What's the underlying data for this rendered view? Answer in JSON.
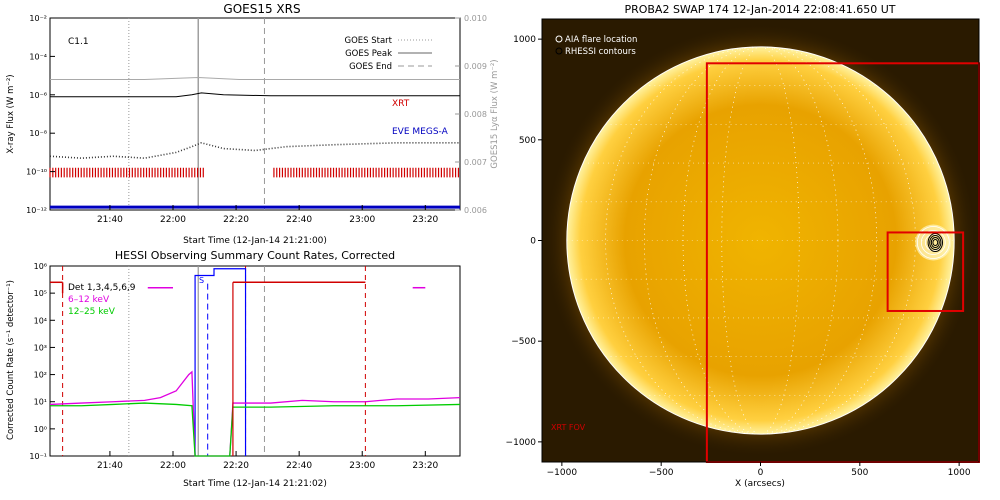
{
  "colors": {
    "goes_gray": "#a9a9a9",
    "xrt_red": "#d00000",
    "eve_blue": "#0000c0",
    "hessi_magenta": "#e000e0",
    "hessi_green": "#00cc00",
    "det_red": "#d00000",
    "attenuator_blue": "#0000ff",
    "sun_orange": "#e8a200",
    "sun_bright": "#fff2a0",
    "swap_bg": "#2a1a00"
  },
  "goes_panel": {
    "title": "GOES15 XRS",
    "class_label": "C1.1",
    "left_axis_label": "X-ray Flux (W m⁻²)",
    "right_axis_label": "GOES15 Lyα Flux (W m⁻²)",
    "x_axis_label": "Start Time (12-Jan-14 21:21:00)",
    "legend": [
      "GOES Start",
      "GOES Peak",
      "GOES End"
    ],
    "series_labels": {
      "xrt": "XRT",
      "eve": "EVE MEGS-A"
    }
  },
  "hessi_panel": {
    "title": "HESSI Observing Summary Count Rates, Corrected",
    "y_axis_label": "Corrected Count Rate (s⁻¹ detector⁻¹)",
    "x_axis_label": "Start Time (12-Jan-14 21:21:02)",
    "legend": [
      "Det 1,3,4,5,6,9",
      "6–12 keV",
      "12–25 keV"
    ],
    "attenuator_label": "S"
  },
  "swap_panel": {
    "title": "PROBA2 SWAP 174 12-Jan-2014 22:08:41.650 UT",
    "legend": [
      "AIA flare location",
      "RHESSI contours"
    ],
    "x_axis_label": "X (arcsecs)",
    "fov_label": "XRT FOV"
  },
  "chart_data": [
    {
      "type": "line",
      "title": "GOES15 XRS",
      "xlabel": "Start Time (12-Jan-14 21:21:00)",
      "ylabel": "X-ray Flux (W m⁻²)",
      "y2label": "GOES15 Lyα Flux (W m⁻²)",
      "x_range_min": [
        0,
        130
      ],
      "x_tick_minutes": [
        19,
        39,
        59,
        79,
        99,
        119
      ],
      "x_ticks": [
        "21:40",
        "22:00",
        "22:20",
        "22:40",
        "23:00",
        "23:20"
      ],
      "ylim_log": [
        -12,
        -2
      ],
      "y_ticks": [
        "10⁻¹²",
        "10⁻¹⁰",
        "10⁻⁸",
        "10⁻⁶",
        "10⁻⁴",
        "10⁻²"
      ],
      "y2lim": [
        0.006,
        0.01
      ],
      "y2_ticks": [
        "0.006",
        "0.007",
        "0.008",
        "0.009",
        "0.010"
      ],
      "goes_start_min": 25,
      "goes_peak_min": 47,
      "goes_end_min": 68,
      "series": [
        {
          "name": "XRT",
          "x": [
            0,
            40,
            45,
            48,
            55,
            70,
            90,
            130
          ],
          "log_y": [
            -6.1,
            -6.1,
            -6.0,
            -5.9,
            -6.0,
            -6.05,
            -6.05,
            -6.05
          ]
        },
        {
          "name": "EVE MEGS-A",
          "x": [
            0,
            10,
            20,
            30,
            40,
            45,
            48,
            55,
            65,
            75,
            90,
            110,
            130
          ],
          "log_y": [
            -9.2,
            -9.3,
            -9.2,
            -9.3,
            -9.0,
            -8.7,
            -8.5,
            -8.8,
            -8.9,
            -8.7,
            -8.6,
            -8.5,
            -8.5
          ]
        },
        {
          "x": [
            0,
            30,
            47,
            60,
            90,
            130
          ],
          "log_y": [
            -5.2,
            -5.2,
            -5.1,
            -5.2,
            -5.2,
            -5.2
          ]
        },
        {
          "x": [
            0,
            130
          ],
          "log_y": [
            -11.85,
            -11.85
          ]
        }
      ],
      "xrt_coverage_min": [
        [
          0,
          49
        ],
        [
          71,
          130
        ]
      ]
    },
    {
      "type": "line",
      "title": "HESSI Observing Summary Count Rates, Corrected",
      "xlabel": "Start Time (12-Jan-14 21:21:02)",
      "ylabel": "Corrected Count Rate (s⁻¹ detector⁻¹)",
      "x_range_min": [
        0,
        130
      ],
      "x_tick_minutes": [
        19,
        39,
        59,
        79,
        99,
        119
      ],
      "x_ticks": [
        "21:40",
        "22:00",
        "22:20",
        "22:40",
        "23:00",
        "23:20"
      ],
      "ylim_log": [
        -1,
        6
      ],
      "y_ticks": [
        "10⁻¹",
        "10⁰",
        "10¹",
        "10²",
        "10³",
        "10⁴",
        "10⁵",
        "10⁶"
      ],
      "vlines_red_dashed_min": [
        4,
        62,
        100
      ],
      "vline_gray_dotted_min": 25,
      "vline_gray_solid_min": 47,
      "vline_gray_dashed_min": 68,
      "series": [
        {
          "name": "6–12 keV",
          "x": [
            0,
            10,
            20,
            30,
            35,
            40,
            42,
            44,
            45,
            46,
            57,
            58,
            70,
            80,
            90,
            100,
            110,
            120,
            130
          ],
          "log_y": [
            0.9,
            0.95,
            1.0,
            1.05,
            1.15,
            1.4,
            1.7,
            2.0,
            2.1,
            -1,
            -1,
            0.95,
            0.95,
            1.05,
            1.0,
            1.0,
            1.1,
            1.1,
            1.15
          ]
        },
        {
          "name": "12–25 keV",
          "x": [
            0,
            10,
            20,
            30,
            40,
            45,
            46,
            57,
            58,
            70,
            90,
            110,
            130
          ],
          "log_y": [
            0.85,
            0.85,
            0.9,
            0.95,
            0.9,
            0.85,
            -1,
            -1,
            0.8,
            0.8,
            0.85,
            0.85,
            0.9
          ]
        },
        {
          "name": "Det 1,3,4,5,6,9",
          "x": [
            0,
            4
          ],
          "log_y": [
            5.4,
            5.4
          ]
        },
        {
          "x": [
            58,
            100
          ],
          "log_y": [
            5.4,
            5.4
          ]
        },
        {
          "x": [
            31,
            39
          ],
          "log_y": [
            5.2,
            5.2
          ]
        },
        {
          "x": [
            115,
            119
          ],
          "log_y": [
            5.2,
            5.2
          ]
        }
      ],
      "attenuator_min": [
        [
          46,
          52
        ],
        [
          52,
          62
        ]
      ],
      "attenuator_log": [
        5.65,
        5.9
      ]
    },
    {
      "type": "image",
      "title": "PROBA2 SWAP 174 12-Jan-2014 22:08:41.650 UT",
      "xlabel": "X (arcsecs)",
      "x_ticks": [
        "−1000",
        "−500",
        "0",
        "500",
        "1000"
      ],
      "y_ticks": [
        "−1000",
        "−500",
        "0",
        "500",
        "1000"
      ],
      "xlim": [
        -1100,
        1100
      ],
      "ylim": [
        -1100,
        1100
      ],
      "sun_radius_arcsec": 975,
      "xrt_fov": [
        -270,
        -1100,
        1100,
        880
      ],
      "aia_box": [
        640,
        -350,
        1020,
        40
      ],
      "rhessi_contour_center": [
        870,
        -10
      ]
    }
  ]
}
